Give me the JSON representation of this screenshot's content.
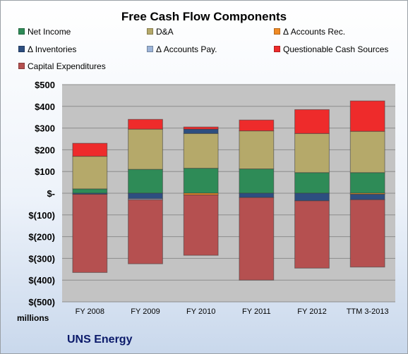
{
  "chart_data": {
    "type": "bar",
    "stacked": true,
    "title": "Free Cash Flow Components",
    "categories": [
      "FY 2008",
      "FY 2009",
      "FY 2010",
      "FY 2011",
      "FY 2012",
      "TTM 3-2013"
    ],
    "ylim": [
      -500,
      500
    ],
    "yticks": [
      "$500",
      "$400",
      "$300",
      "$200",
      "$100",
      "$-",
      "$(100)",
      "$(200)",
      "$(300)",
      "$(400)",
      "$(500)"
    ],
    "ytick_values": [
      500,
      400,
      300,
      200,
      100,
      0,
      -100,
      -200,
      -300,
      -400,
      -500
    ],
    "units_label": "millions",
    "grid": true,
    "legend_position": "top",
    "series": [
      {
        "name": "Net Income",
        "color": "#2e8b57",
        "values": [
          20,
          110,
          115,
          112,
          95,
          95
        ]
      },
      {
        "name": "D&A",
        "color": "#b5a96a",
        "values": [
          150,
          185,
          160,
          175,
          180,
          190
        ]
      },
      {
        "name": "Δ Accounts Rec.",
        "color": "#f08a24",
        "values": [
          0,
          0,
          -8,
          0,
          0,
          -5
        ]
      },
      {
        "name": "Δ Inventories",
        "color": "#2d4e80",
        "values": [
          -5,
          -25,
          20,
          -20,
          -35,
          -25
        ]
      },
      {
        "name": "Δ Accounts Pay.",
        "color": "#9cb4d8",
        "values": [
          0,
          -5,
          0,
          0,
          0,
          0
        ]
      },
      {
        "name": "Questionable Cash Sources",
        "color": "#ee2b2b",
        "values": [
          60,
          45,
          10,
          50,
          110,
          140
        ]
      },
      {
        "name": "Capital Expenditures",
        "color": "#b55050",
        "values": [
          -360,
          -295,
          -278,
          -380,
          -310,
          -310
        ]
      }
    ]
  },
  "footer": "UNS Energy"
}
